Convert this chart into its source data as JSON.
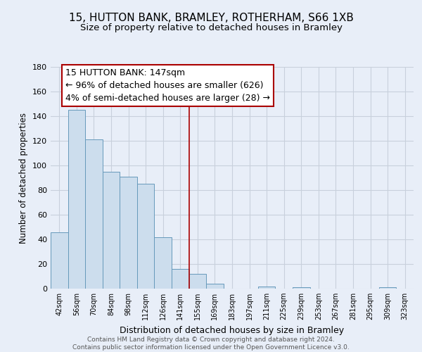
{
  "title": "15, HUTTON BANK, BRAMLEY, ROTHERHAM, S66 1XB",
  "subtitle": "Size of property relative to detached houses in Bramley",
  "xlabel": "Distribution of detached houses by size in Bramley",
  "ylabel": "Number of detached properties",
  "bin_labels": [
    "42sqm",
    "56sqm",
    "70sqm",
    "84sqm",
    "98sqm",
    "112sqm",
    "126sqm",
    "141sqm",
    "155sqm",
    "169sqm",
    "183sqm",
    "197sqm",
    "211sqm",
    "225sqm",
    "239sqm",
    "253sqm",
    "267sqm",
    "281sqm",
    "295sqm",
    "309sqm",
    "323sqm"
  ],
  "bar_values": [
    46,
    145,
    121,
    95,
    91,
    85,
    42,
    16,
    12,
    4,
    0,
    0,
    2,
    0,
    1,
    0,
    0,
    0,
    0,
    1,
    0
  ],
  "bar_color": "#ccdded",
  "bar_edge_color": "#6699bb",
  "vline_x_index": 7.5,
  "vline_color": "#aa0000",
  "annotation_line1": "15 HUTTON BANK: 147sqm",
  "annotation_line2": "← 96% of detached houses are smaller (626)",
  "annotation_line3": "4% of semi-detached houses are larger (28) →",
  "ylim": [
    0,
    180
  ],
  "yticks": [
    0,
    20,
    40,
    60,
    80,
    100,
    120,
    140,
    160,
    180
  ],
  "footer_text": "Contains HM Land Registry data © Crown copyright and database right 2024.\nContains public sector information licensed under the Open Government Licence v3.0.",
  "background_color": "#e8eef8",
  "grid_color": "#c8d0dc",
  "title_fontsize": 11,
  "subtitle_fontsize": 9.5,
  "annotation_fontsize": 9
}
